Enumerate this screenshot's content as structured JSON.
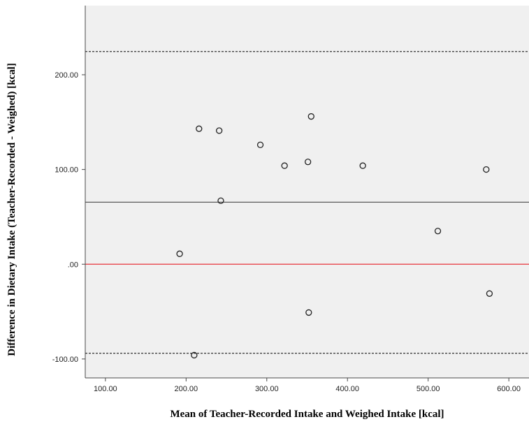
{
  "chart_data": {
    "type": "scatter",
    "title": "",
    "xlabel": "Mean of Teacher-Recorded Intake and Weighed Intake [kcal]",
    "ylabel": "Difference in Dietary Intake (Teacher-Recorded - Weighed) [kcal]",
    "xlim": [
      75,
      625
    ],
    "ylim": [
      -120,
      273
    ],
    "x_ticks": [
      100,
      200,
      300,
      400,
      500,
      600
    ],
    "y_ticks": [
      -100,
      0,
      100,
      200
    ],
    "x_tick_labels": [
      "100.00",
      "200.00",
      "300.00",
      "400.00",
      "500.00",
      "600.00"
    ],
    "y_tick_labels": [
      "-100.00",
      ".00",
      "100.00",
      "200.00"
    ],
    "grid": false,
    "legend": "none",
    "points": [
      {
        "x": 192,
        "y": 11
      },
      {
        "x": 210,
        "y": -96
      },
      {
        "x": 216,
        "y": 143
      },
      {
        "x": 241,
        "y": 141
      },
      {
        "x": 243,
        "y": 67
      },
      {
        "x": 292,
        "y": 126
      },
      {
        "x": 322,
        "y": 104
      },
      {
        "x": 351,
        "y": 108
      },
      {
        "x": 352,
        "y": -51
      },
      {
        "x": 355,
        "y": 156
      },
      {
        "x": 419,
        "y": 104
      },
      {
        "x": 512,
        "y": 35
      },
      {
        "x": 572,
        "y": 100
      },
      {
        "x": 576,
        "y": -31
      }
    ],
    "reference_lines": [
      {
        "y": 224.5,
        "style": "dotted",
        "color": "#333333"
      },
      {
        "y": 65.5,
        "style": "solid",
        "color": "#4d4d4d"
      },
      {
        "y": 0,
        "style": "solid",
        "color": "#e8343c"
      },
      {
        "y": -94,
        "style": "dotted",
        "color": "#333333"
      }
    ],
    "colors": {
      "plot_background": "#f0f0f0",
      "point_stroke": "#222222",
      "axis": "#4a4a4a"
    }
  }
}
